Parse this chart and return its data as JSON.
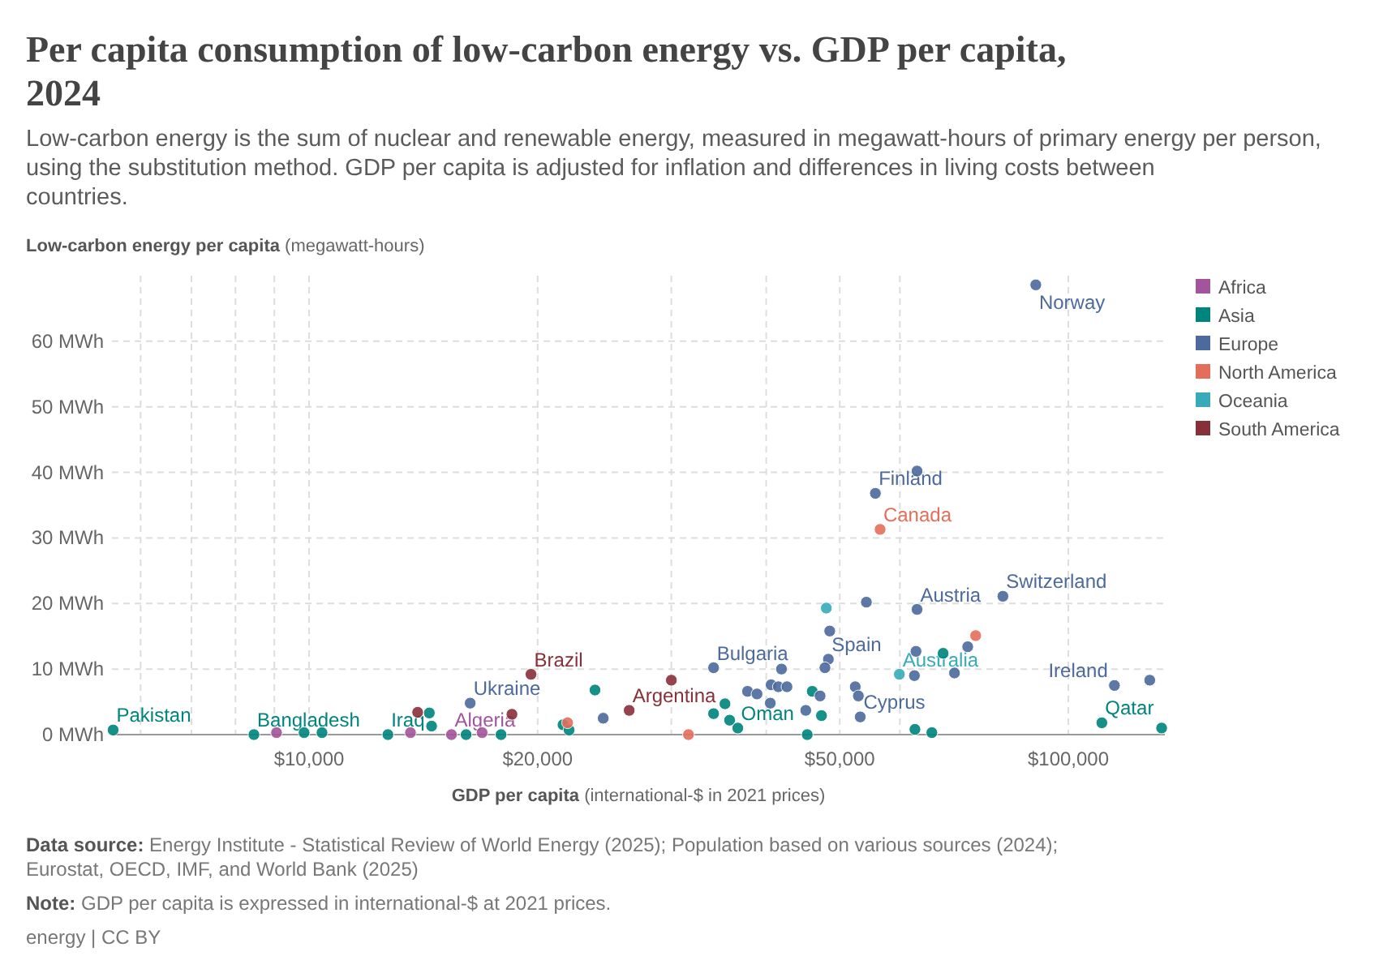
{
  "chart_data": {
    "type": "scatter",
    "title": "Per capita consumption of low-carbon energy vs. GDP per capita, 2024",
    "subtitle": "Low-carbon energy is the sum of nuclear and renewable energy, measured in megawatt-hours of primary energy per person, using the substitution method. GDP per capita is adjusted for inflation and differences in living costs between countries.",
    "xlabel": "GDP per capita (international-$ in 2021 prices)",
    "ylabel": "Low-carbon energy per capita (megawatt-hours)",
    "log": "x",
    "grid": true,
    "legend": "right",
    "marker": "circle",
    "xlim": [
      5500,
      134000
    ],
    "ylim": [
      0,
      70
    ],
    "xticks": [
      {
        "value": 6000,
        "label": null
      },
      {
        "value": 7000,
        "label": null
      },
      {
        "value": 8000,
        "label": null
      },
      {
        "value": 9000,
        "label": null
      },
      {
        "value": 10000,
        "label": "$10,000"
      },
      {
        "value": 20000,
        "label": "$20,000"
      },
      {
        "value": 30000,
        "label": null
      },
      {
        "value": 40000,
        "label": null
      },
      {
        "value": 50000,
        "label": "$50,000"
      },
      {
        "value": 60000,
        "label": null
      },
      {
        "value": 100000,
        "label": "$100,000"
      }
    ],
    "yticks": [
      {
        "value": 0,
        "label": "0 MWh"
      },
      {
        "value": 10,
        "label": "10 MWh"
      },
      {
        "value": 20,
        "label": "20 MWh"
      },
      {
        "value": 30,
        "label": "30 MWh"
      },
      {
        "value": 40,
        "label": "40 MWh"
      },
      {
        "value": 50,
        "label": "50 MWh"
      },
      {
        "value": 60,
        "label": "60 MWh"
      }
    ],
    "series": [
      {
        "name": "Africa",
        "color": "#a2559c",
        "x": [
          9060,
          13600,
          15400,
          16900
        ],
        "values": [
          0.3,
          0.3,
          0,
          0.3
        ]
      },
      {
        "name": "Asia",
        "color": "#00847e",
        "x": [
          5520,
          8460,
          9850,
          10400,
          12700,
          14400,
          14500,
          16100,
          17900,
          21600,
          22000,
          23800,
          35300,
          34100,
          35800,
          36700,
          46000,
          47300,
          45300,
          62800,
          66100,
          68400,
          110700,
          132700
        ],
        "values": [
          0.7,
          0,
          0.3,
          0.3,
          0,
          3.3,
          1.3,
          0,
          0,
          1.5,
          0.7,
          6.8,
          4.7,
          3.2,
          2.2,
          1.0,
          6.6,
          2.9,
          0,
          0.8,
          0.3,
          12.4,
          1.8,
          1.0
        ]
      },
      {
        "name": "Europe",
        "color": "#4c6a9c",
        "x": [
          16300,
          24400,
          90600,
          55700,
          63200,
          63200,
          54200,
          82000,
          48500,
          73700,
          63000,
          48300,
          47800,
          34100,
          41900,
          62700,
          70800,
          115000,
          128000,
          40600,
          41500,
          42600,
          37800,
          38900,
          47100,
          52400,
          52900,
          40500,
          45100,
          53200
        ],
        "values": [
          4.8,
          2.5,
          68.6,
          36.8,
          40.2,
          19.1,
          20.2,
          21.1,
          15.8,
          13.4,
          12.7,
          11.5,
          10.2,
          10.2,
          10.0,
          9.0,
          9.4,
          7.5,
          8.3,
          7.6,
          7.3,
          7.3,
          6.6,
          6.2,
          5.9,
          7.3,
          5.9,
          4.8,
          3.7,
          2.7
        ]
      },
      {
        "name": "North America",
        "color": "#e56e5a",
        "x": [
          21900,
          31600,
          56500,
          75500
        ],
        "values": [
          1.8,
          0,
          31.3,
          15.1
        ]
      },
      {
        "name": "Oceania",
        "color": "#38aaba",
        "x": [
          48000,
          59900
        ],
        "values": [
          19.3,
          9.2
        ]
      },
      {
        "name": "South America",
        "color": "#883039",
        "x": [
          13900,
          18500,
          19600,
          26400,
          30000
        ],
        "values": [
          3.4,
          3.1,
          9.2,
          3.7,
          8.3
        ]
      }
    ],
    "annotations": [
      {
        "text": "Pakistan",
        "x": 5520,
        "y": 0.7
      },
      {
        "text": "Bangladesh",
        "x": 8460,
        "y": 0
      },
      {
        "text": "Iraq",
        "x": 12700,
        "y": 0
      },
      {
        "text": "Algeria",
        "x": 15400,
        "y": 0
      },
      {
        "text": "Ukraine",
        "x": 16300,
        "y": 4.8
      },
      {
        "text": "Brazil",
        "x": 19600,
        "y": 9.2
      },
      {
        "text": "Argentina",
        "x": 26400,
        "y": 3.7
      },
      {
        "text": "Bulgaria",
        "x": 34100,
        "y": 10.2
      },
      {
        "text": "Oman",
        "x": 36700,
        "y": 1.0
      },
      {
        "text": "Spain",
        "x": 48300,
        "y": 11.5
      },
      {
        "text": "Cyprus",
        "x": 53200,
        "y": 2.7
      },
      {
        "text": "Australia",
        "x": 59900,
        "y": 9.2
      },
      {
        "text": "Austria",
        "x": 63200,
        "y": 19.1
      },
      {
        "text": "Finland",
        "x": 55700,
        "y": 36.8
      },
      {
        "text": "Canada",
        "x": 56500,
        "y": 31.3
      },
      {
        "text": "Switzerland",
        "x": 82000,
        "y": 21.1
      },
      {
        "text": "Norway",
        "x": 90600,
        "y": 68.6
      },
      {
        "text": "Ireland",
        "x": 115000,
        "y": 7.5
      },
      {
        "text": "Qatar",
        "x": 110700,
        "y": 1.8
      },
      "Data source: Energy Institute - Statistical Review of World Energy (2025); Population based on various sources (2024); Eurostat, OECD, IMF, and World Bank (2025)",
      "Note: GDP per capita is expressed in international-$ at 2021 prices.",
      "energy | CC BY"
    ]
  }
}
